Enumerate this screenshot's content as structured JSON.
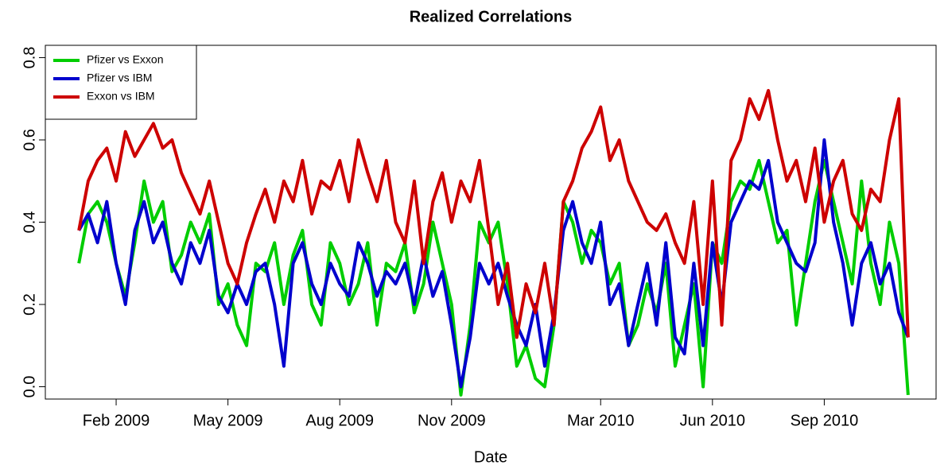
{
  "chart_data": {
    "type": "line",
    "title": "Realized Correlations",
    "x_label": "Date",
    "x": [
      0,
      0.25,
      0.5,
      0.75,
      1,
      1.25,
      1.5,
      1.75,
      2,
      2.25,
      2.5,
      2.75,
      3,
      3.25,
      3.5,
      3.75,
      4,
      4.25,
      4.5,
      4.75,
      5,
      5.25,
      5.5,
      5.75,
      6,
      6.25,
      6.5,
      6.75,
      7,
      7.25,
      7.5,
      7.75,
      8,
      8.25,
      8.5,
      8.75,
      9,
      9.25,
      9.5,
      9.75,
      10,
      10.25,
      10.5,
      10.75,
      11,
      11.25,
      11.5,
      11.75,
      12,
      12.25,
      12.5,
      12.75,
      13,
      13.25,
      13.5,
      13.75,
      14,
      14.25,
      14.5,
      14.75,
      15,
      15.25,
      15.5,
      15.75,
      16,
      16.25,
      16.5,
      16.75,
      17,
      17.25,
      17.5,
      17.75,
      18,
      18.25,
      18.5,
      18.75,
      19,
      19.25,
      19.5,
      19.75,
      20,
      20.25,
      20.5,
      20.75,
      21,
      21.25,
      21.5,
      21.75,
      22,
      22.25
    ],
    "series": [
      {
        "name": "Pfizer vs Exxon",
        "color": "#00cd00",
        "values": [
          0.3,
          0.42,
          0.45,
          0.4,
          0.3,
          0.22,
          0.35,
          0.5,
          0.4,
          0.45,
          0.28,
          0.32,
          0.4,
          0.35,
          0.42,
          0.2,
          0.25,
          0.15,
          0.1,
          0.3,
          0.28,
          0.35,
          0.2,
          0.32,
          0.38,
          0.2,
          0.15,
          0.35,
          0.3,
          0.2,
          0.25,
          0.35,
          0.15,
          0.3,
          0.28,
          0.35,
          0.18,
          0.25,
          0.4,
          0.3,
          0.2,
          -0.02,
          0.15,
          0.4,
          0.35,
          0.4,
          0.25,
          0.05,
          0.1,
          0.02,
          0.0,
          0.15,
          0.45,
          0.4,
          0.3,
          0.38,
          0.35,
          0.25,
          0.3,
          0.1,
          0.15,
          0.25,
          0.18,
          0.3,
          0.05,
          0.15,
          0.25,
          0.0,
          0.35,
          0.3,
          0.45,
          0.5,
          0.48,
          0.55,
          0.45,
          0.35,
          0.38,
          0.15,
          0.3,
          0.45,
          0.55,
          0.45,
          0.35,
          0.25,
          0.5,
          0.3,
          0.2,
          0.4,
          0.3,
          -0.02
        ]
      },
      {
        "name": "Pfizer vs IBM",
        "color": "#0000cd",
        "values": [
          0.38,
          0.42,
          0.35,
          0.45,
          0.3,
          0.2,
          0.38,
          0.45,
          0.35,
          0.4,
          0.3,
          0.25,
          0.35,
          0.3,
          0.38,
          0.22,
          0.18,
          0.25,
          0.2,
          0.28,
          0.3,
          0.2,
          0.05,
          0.3,
          0.35,
          0.25,
          0.2,
          0.3,
          0.25,
          0.22,
          0.35,
          0.3,
          0.22,
          0.28,
          0.25,
          0.3,
          0.2,
          0.32,
          0.22,
          0.28,
          0.15,
          0.0,
          0.12,
          0.3,
          0.25,
          0.3,
          0.22,
          0.15,
          0.1,
          0.2,
          0.05,
          0.18,
          0.38,
          0.45,
          0.35,
          0.3,
          0.4,
          0.2,
          0.25,
          0.1,
          0.2,
          0.3,
          0.15,
          0.35,
          0.12,
          0.08,
          0.3,
          0.1,
          0.35,
          0.2,
          0.4,
          0.45,
          0.5,
          0.48,
          0.55,
          0.4,
          0.35,
          0.3,
          0.28,
          0.35,
          0.6,
          0.4,
          0.3,
          0.15,
          0.3,
          0.35,
          0.25,
          0.3,
          0.18,
          0.12
        ]
      },
      {
        "name": "Exxon vs IBM",
        "color": "#cd0000",
        "values": [
          0.38,
          0.5,
          0.55,
          0.58,
          0.5,
          0.62,
          0.56,
          0.6,
          0.64,
          0.58,
          0.6,
          0.52,
          0.47,
          0.42,
          0.5,
          0.4,
          0.3,
          0.25,
          0.35,
          0.42,
          0.48,
          0.4,
          0.5,
          0.45,
          0.55,
          0.42,
          0.5,
          0.48,
          0.55,
          0.45,
          0.6,
          0.52,
          0.45,
          0.55,
          0.4,
          0.35,
          0.5,
          0.3,
          0.45,
          0.52,
          0.4,
          0.5,
          0.45,
          0.55,
          0.38,
          0.2,
          0.3,
          0.12,
          0.25,
          0.18,
          0.3,
          0.15,
          0.45,
          0.5,
          0.58,
          0.62,
          0.68,
          0.55,
          0.6,
          0.5,
          0.45,
          0.4,
          0.38,
          0.42,
          0.35,
          0.3,
          0.45,
          0.2,
          0.5,
          0.15,
          0.55,
          0.6,
          0.7,
          0.65,
          0.72,
          0.6,
          0.5,
          0.55,
          0.45,
          0.58,
          0.4,
          0.5,
          0.55,
          0.42,
          0.38,
          0.48,
          0.45,
          0.6,
          0.7,
          0.12
        ]
      }
    ],
    "xlim": [
      -0.9,
      23
    ],
    "xticks": [
      {
        "value": 1,
        "label": "Feb 2009"
      },
      {
        "value": 4,
        "label": "May 2009"
      },
      {
        "value": 7,
        "label": "Aug 2009"
      },
      {
        "value": 10,
        "label": "Nov 2009"
      },
      {
        "value": 14,
        "label": "Mar 2010"
      },
      {
        "value": 17,
        "label": "Jun 2010"
      },
      {
        "value": 20,
        "label": "Sep 2010"
      }
    ],
    "ylim": [
      -0.03,
      0.83
    ],
    "yticks": [
      {
        "value": 0,
        "label": "0.0"
      },
      0.2,
      0.4,
      0.6,
      0.8
    ],
    "legend": "top-left"
  }
}
